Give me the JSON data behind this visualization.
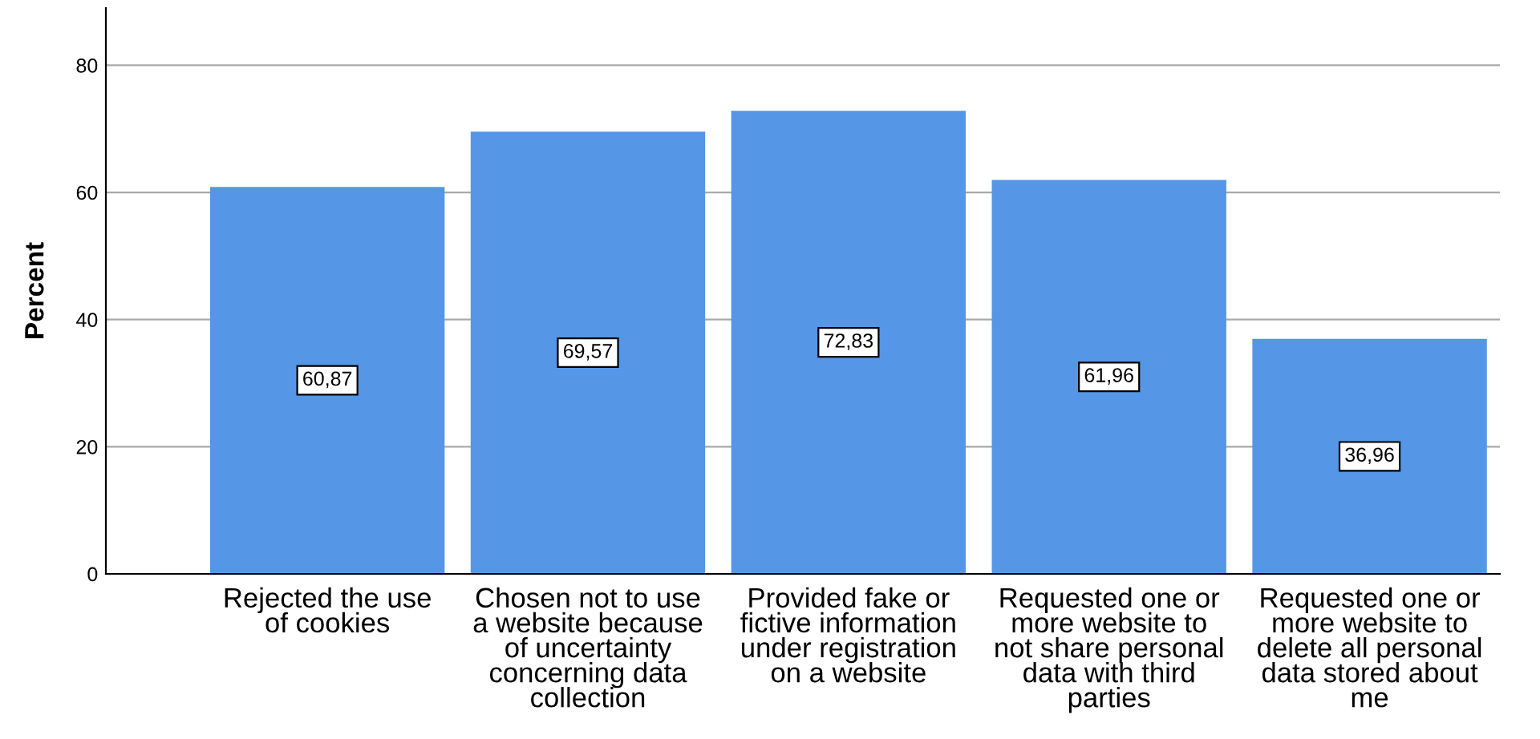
{
  "chart_data": {
    "type": "bar",
    "ylabel": "Percent",
    "categories": [
      "Rejected the use\nof cookies",
      "Chosen not to use\na website because\nof uncertainty\nconcerning data\ncollection",
      "Provided fake or\nfictive information\nunder registration\non a website",
      "Requested one or\nmore website to\nnot share personal\ndata with third\nparties",
      "Requested one or\nmore website to\ndelete all personal\ndata stored about\nme"
    ],
    "values": [
      60.87,
      69.57,
      72.83,
      61.96,
      36.96
    ],
    "value_labels": [
      "60,87",
      "69,57",
      "72,83",
      "61,96",
      "36,96"
    ],
    "color": "#5596e6",
    "ylim": [
      0,
      89
    ],
    "yticks": [
      0,
      20,
      40,
      60,
      80
    ],
    "grid": "y"
  }
}
